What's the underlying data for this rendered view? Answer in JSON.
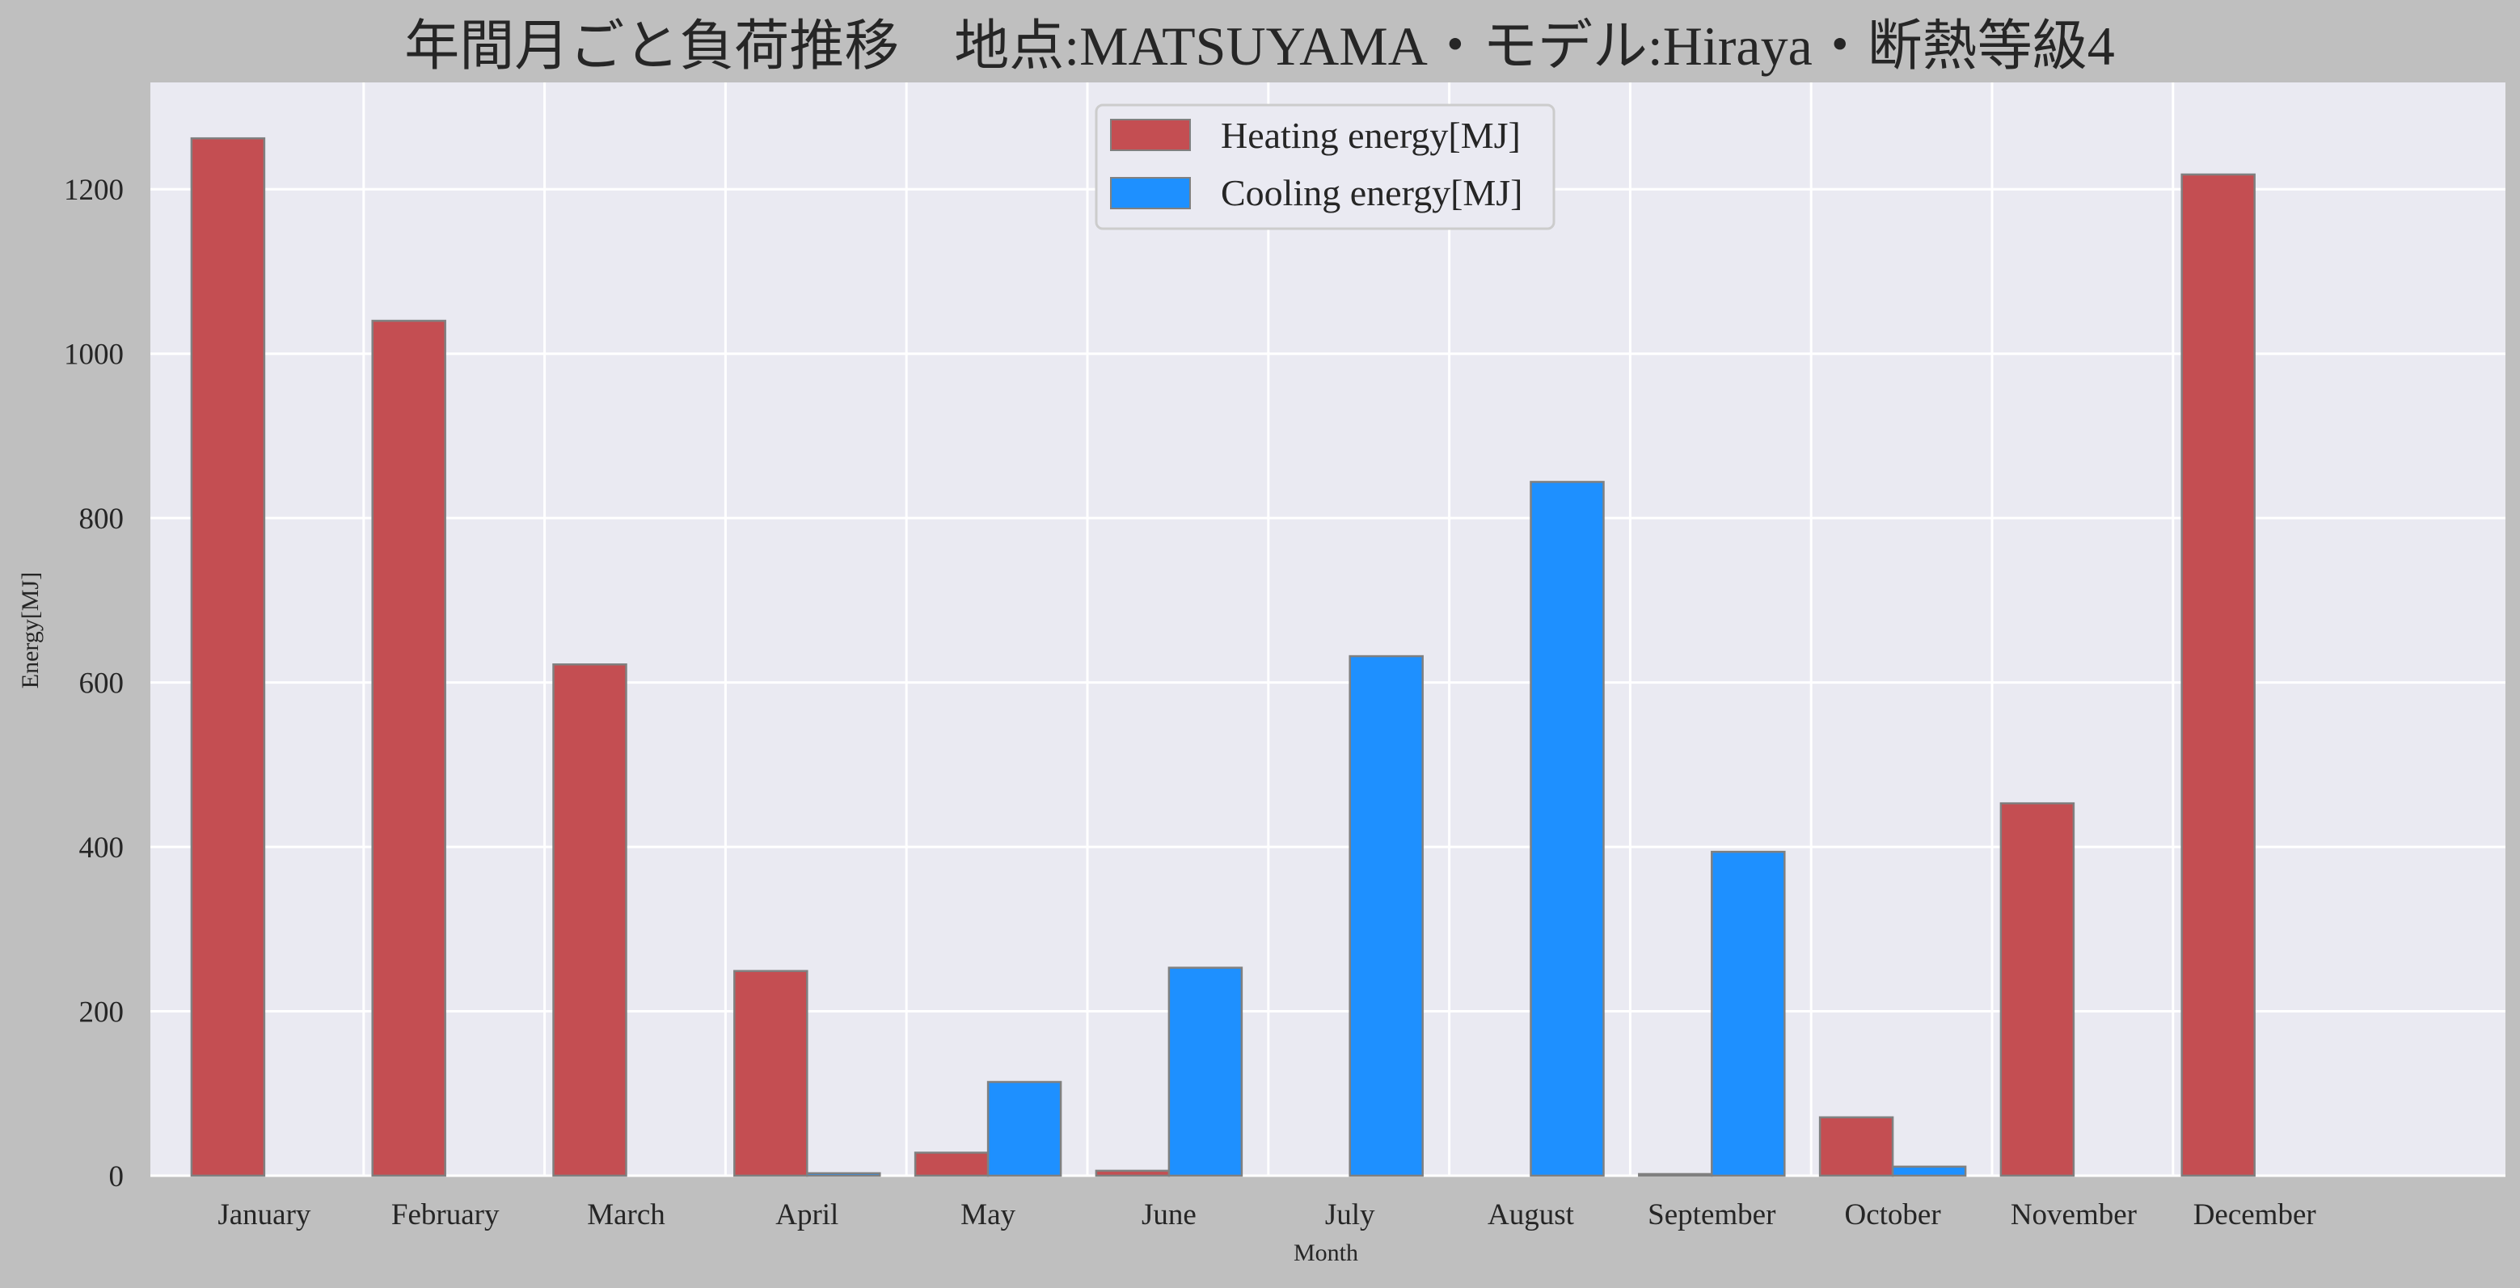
{
  "chart_data": {
    "type": "bar",
    "title": "年間月ごと負荷推移　地点:MATSUYAMA・モデル:Hiraya・断熱等級4",
    "xlabel": "Month",
    "ylabel": "Energy[MJ]",
    "ylim": [
      0,
      1330
    ],
    "yticks": [
      0,
      200,
      400,
      600,
      800,
      1000,
      1200
    ],
    "grid": true,
    "legend_position": "top-center",
    "categories": [
      "January",
      "February",
      "March",
      "April",
      "May",
      "June",
      "July",
      "August",
      "September",
      "October",
      "November",
      "December"
    ],
    "series": [
      {
        "name": "Heating energy[MJ]",
        "color": "#c44e52",
        "values": [
          1262,
          1040,
          622,
          249,
          28,
          6,
          0,
          0,
          2,
          71,
          453,
          1218
        ]
      },
      {
        "name": "Cooling energy[MJ]",
        "color": "#1e90ff",
        "values": [
          0,
          0,
          0,
          3,
          114,
          253,
          632,
          844,
          394,
          11,
          0,
          0
        ]
      }
    ]
  }
}
